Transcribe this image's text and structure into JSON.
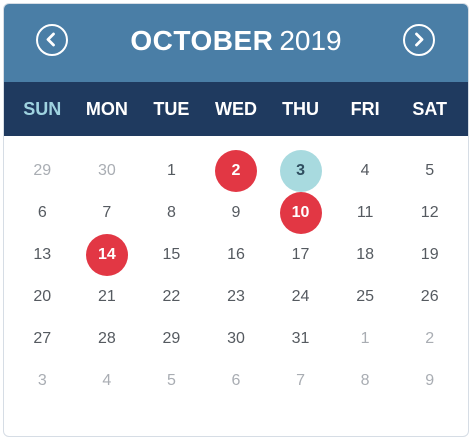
{
  "header": {
    "month": "OCTOBER",
    "year": "2019",
    "prev_icon": "chevron-left-icon",
    "next_icon": "chevron-right-icon"
  },
  "weekdays": [
    "SUN",
    "MON",
    "TUE",
    "WED",
    "THU",
    "FRI",
    "SAT"
  ],
  "days": [
    {
      "label": "29",
      "state": "other"
    },
    {
      "label": "30",
      "state": "other"
    },
    {
      "label": "1",
      "state": "normal"
    },
    {
      "label": "2",
      "state": "event"
    },
    {
      "label": "3",
      "state": "today"
    },
    {
      "label": "4",
      "state": "normal"
    },
    {
      "label": "5",
      "state": "normal"
    },
    {
      "label": "6",
      "state": "normal"
    },
    {
      "label": "7",
      "state": "normal"
    },
    {
      "label": "8",
      "state": "normal"
    },
    {
      "label": "9",
      "state": "normal"
    },
    {
      "label": "10",
      "state": "event"
    },
    {
      "label": "11",
      "state": "normal"
    },
    {
      "label": "12",
      "state": "normal"
    },
    {
      "label": "13",
      "state": "normal"
    },
    {
      "label": "14",
      "state": "event"
    },
    {
      "label": "15",
      "state": "normal"
    },
    {
      "label": "16",
      "state": "normal"
    },
    {
      "label": "17",
      "state": "normal"
    },
    {
      "label": "18",
      "state": "normal"
    },
    {
      "label": "19",
      "state": "normal"
    },
    {
      "label": "20",
      "state": "normal"
    },
    {
      "label": "21",
      "state": "normal"
    },
    {
      "label": "22",
      "state": "normal"
    },
    {
      "label": "23",
      "state": "normal"
    },
    {
      "label": "24",
      "state": "normal"
    },
    {
      "label": "25",
      "state": "normal"
    },
    {
      "label": "26",
      "state": "normal"
    },
    {
      "label": "27",
      "state": "normal"
    },
    {
      "label": "28",
      "state": "normal"
    },
    {
      "label": "29",
      "state": "normal"
    },
    {
      "label": "30",
      "state": "normal"
    },
    {
      "label": "31",
      "state": "normal"
    },
    {
      "label": "1",
      "state": "other"
    },
    {
      "label": "2",
      "state": "other"
    },
    {
      "label": "3",
      "state": "other"
    },
    {
      "label": "4",
      "state": "other"
    },
    {
      "label": "5",
      "state": "other"
    },
    {
      "label": "6",
      "state": "other"
    },
    {
      "label": "7",
      "state": "other"
    },
    {
      "label": "8",
      "state": "other"
    },
    {
      "label": "9",
      "state": "other"
    }
  ],
  "colors": {
    "header_bg": "#4a7ea6",
    "weekday_bg": "#1f3a5f",
    "sunday_label": "#9fd3e0",
    "event_circle": "#e23744",
    "today_circle": "#a8dadf",
    "other_month_text": "#a9adb3"
  }
}
